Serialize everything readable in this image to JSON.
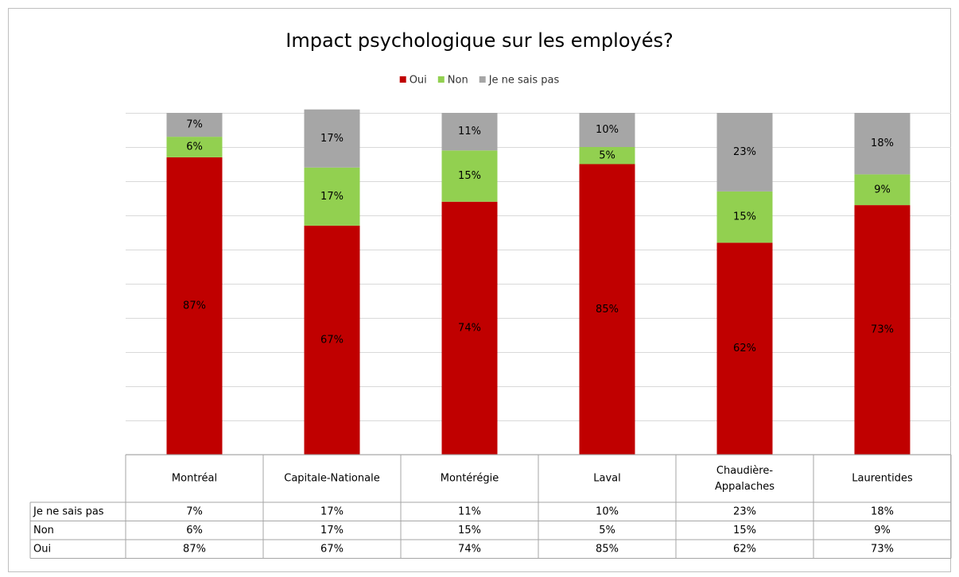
{
  "chart_data": {
    "type": "bar",
    "stacked": true,
    "title": "Impact psychologique sur les employés?",
    "categories": [
      "Montréal",
      "Capitale-Nationale",
      "Montérégie",
      "Laval",
      "Chaudière-Appalaches",
      "Laurentides"
    ],
    "series": [
      {
        "name": "Oui",
        "color": "#c00000",
        "values": [
          87,
          67,
          74,
          85,
          62,
          73
        ],
        "value_labels": [
          "87%",
          "67%",
          "74%",
          "85%",
          "62%",
          "73%"
        ]
      },
      {
        "name": "Non",
        "color": "#92d050",
        "values": [
          6,
          17,
          15,
          5,
          15,
          9
        ],
        "value_labels": [
          "6%",
          "17%",
          "15%",
          "5%",
          "15%",
          "9%"
        ]
      },
      {
        "name": "Je ne sais pas",
        "color": "#a6a6a6",
        "values": [
          7,
          17,
          11,
          10,
          23,
          18
        ],
        "value_labels": [
          "7%",
          "17%",
          "11%",
          "10%",
          "23%",
          "18%"
        ]
      }
    ],
    "ylim": [
      0,
      100
    ],
    "yticks": [
      0,
      10,
      20,
      30,
      40,
      50,
      60,
      70,
      80,
      90,
      100
    ],
    "grid": true,
    "legend": "top",
    "data_table": true
  }
}
